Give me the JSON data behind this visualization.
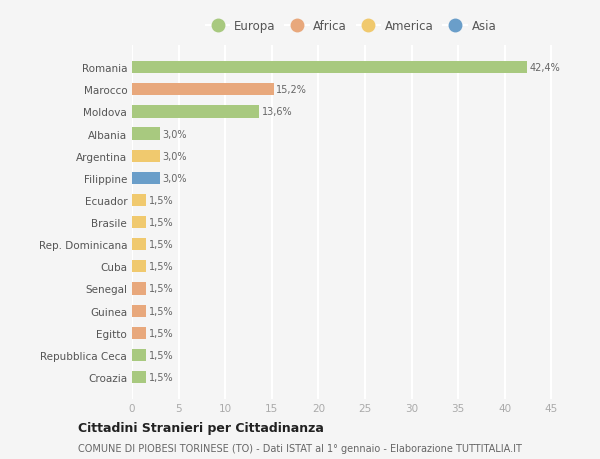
{
  "countries": [
    "Romania",
    "Marocco",
    "Moldova",
    "Albania",
    "Argentina",
    "Filippine",
    "Ecuador",
    "Brasile",
    "Rep. Dominicana",
    "Cuba",
    "Senegal",
    "Guinea",
    "Egitto",
    "Repubblica Ceca",
    "Croazia"
  ],
  "values": [
    42.4,
    15.2,
    13.6,
    3.0,
    3.0,
    3.0,
    1.5,
    1.5,
    1.5,
    1.5,
    1.5,
    1.5,
    1.5,
    1.5,
    1.5
  ],
  "labels": [
    "42,4%",
    "15,2%",
    "13,6%",
    "3,0%",
    "3,0%",
    "3,0%",
    "1,5%",
    "1,5%",
    "1,5%",
    "1,5%",
    "1,5%",
    "1,5%",
    "1,5%",
    "1,5%",
    "1,5%"
  ],
  "continents": [
    "Europa",
    "Africa",
    "Europa",
    "Europa",
    "America",
    "Asia",
    "America",
    "America",
    "America",
    "America",
    "Africa",
    "Africa",
    "Africa",
    "Europa",
    "Europa"
  ],
  "colors": {
    "Europa": "#a8c97f",
    "Africa": "#e8a87c",
    "America": "#f0c96e",
    "Asia": "#6a9ec9"
  },
  "legend_order": [
    "Europa",
    "Africa",
    "America",
    "Asia"
  ],
  "title": "Cittadini Stranieri per Cittadinanza",
  "subtitle": "COMUNE DI PIOBESI TORINESE (TO) - Dati ISTAT al 1° gennaio - Elaborazione TUTTITALIA.IT",
  "xlim": [
    0,
    47
  ],
  "xticks": [
    0,
    5,
    10,
    15,
    20,
    25,
    30,
    35,
    40,
    45
  ],
  "background_color": "#f5f5f5",
  "grid_color": "#ffffff",
  "bar_height": 0.55
}
